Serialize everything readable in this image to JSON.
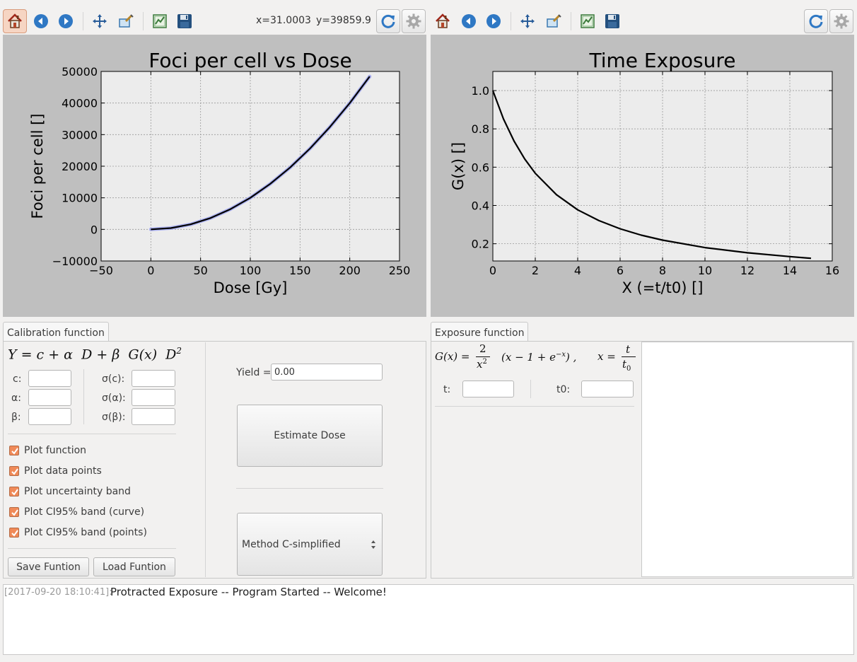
{
  "toolbar_left": {
    "icons": [
      "home-icon",
      "back-arrow-icon",
      "forward-arrow-icon",
      "pan-icon",
      "zoom-icon",
      "configure-subplots-icon",
      "save-icon",
      "refresh-icon",
      "gear-icon"
    ],
    "coord_x": "x=31.0003",
    "coord_y": "y=39859.9"
  },
  "toolbar_right": {
    "icons": [
      "home-icon",
      "back-arrow-icon",
      "forward-arrow-icon",
      "pan-icon",
      "zoom-icon",
      "configure-subplots-icon",
      "save-icon",
      "refresh-icon",
      "gear-icon"
    ]
  },
  "chart_data": [
    {
      "type": "line",
      "title": "Foci per cell vs Dose",
      "xlabel": "Dose [Gy]",
      "ylabel": "Foci per cell []",
      "xlim": [
        -50,
        250
      ],
      "ylim": [
        -10000,
        50000
      ],
      "xticks": [
        -50,
        0,
        50,
        100,
        150,
        200,
        250
      ],
      "yticks": [
        -10000,
        0,
        10000,
        20000,
        30000,
        40000,
        50000
      ],
      "xtick_labels": [
        "−50",
        "0",
        "50",
        "100",
        "150",
        "200",
        "250"
      ],
      "ytick_labels": [
        "−10000",
        "0",
        "10000",
        "20000",
        "30000",
        "40000",
        "50000"
      ],
      "grid": true,
      "series": [
        {
          "x": [
            0,
            20,
            40,
            60,
            80,
            100,
            120,
            140,
            160,
            180,
            200,
            220
          ],
          "y": [
            0,
            400,
            1600,
            3600,
            6400,
            10000,
            14400,
            19600,
            25600,
            32400,
            40000,
            48400
          ]
        }
      ],
      "band_color": "#aab0f0",
      "line_color": "#000000"
    },
    {
      "type": "line",
      "title": "Time Exposure",
      "xlabel": "X (=t/t0) []",
      "ylabel": "G(x) []",
      "xlim": [
        0,
        16
      ],
      "ylim": [
        0.11,
        1.1
      ],
      "xticks": [
        0,
        2,
        4,
        6,
        8,
        10,
        12,
        14,
        16
      ],
      "yticks": [
        0.2,
        0.4,
        0.6,
        0.8,
        1.0
      ],
      "xtick_labels": [
        "0",
        "2",
        "4",
        "6",
        "8",
        "10",
        "12",
        "14",
        "16"
      ],
      "ytick_labels": [
        "0.2",
        "0.4",
        "0.6",
        "0.8",
        "1.0"
      ],
      "grid": true,
      "series": [
        {
          "x": [
            0,
            0.5,
            1,
            1.5,
            2,
            3,
            4,
            5,
            6,
            7,
            8,
            10,
            12,
            14,
            15
          ],
          "y": [
            1.0,
            0.852,
            0.736,
            0.643,
            0.568,
            0.456,
            0.377,
            0.321,
            0.278,
            0.245,
            0.219,
            0.18,
            0.153,
            0.133,
            0.124
          ]
        }
      ],
      "line_color": "#000000"
    }
  ],
  "calibration": {
    "tab_label": "Calibration function",
    "labels": {
      "c": "c:",
      "alpha": "α:",
      "beta": "β:",
      "sc": "σ(c):",
      "salpha": "σ(α):",
      "sbeta": "σ(β):"
    },
    "values": {
      "c": "",
      "alpha": "",
      "beta": "",
      "sc": "",
      "salpha": "",
      "sbeta": ""
    },
    "checkboxes": [
      "Plot function",
      "Plot data points",
      "Plot uncertainty band",
      "Plot CI95% band (curve)",
      "Plot CI95% band (points)"
    ],
    "save_label": "Save Funtion",
    "load_label": "Load Funtion",
    "yield_label": "Yield =",
    "yield_value": "0.00",
    "estimate_label": "Estimate Dose",
    "method_value": "Method C-simplified"
  },
  "exposure": {
    "tab_label": "Exposure function",
    "t_label": "t:",
    "t0_label": "t0:",
    "t_value": "",
    "t0_value": ""
  },
  "log": {
    "timestamp": "[2017-09-20 18:10:41]:",
    "message": "Protracted Exposure -- Program Started -- Welcome!"
  }
}
